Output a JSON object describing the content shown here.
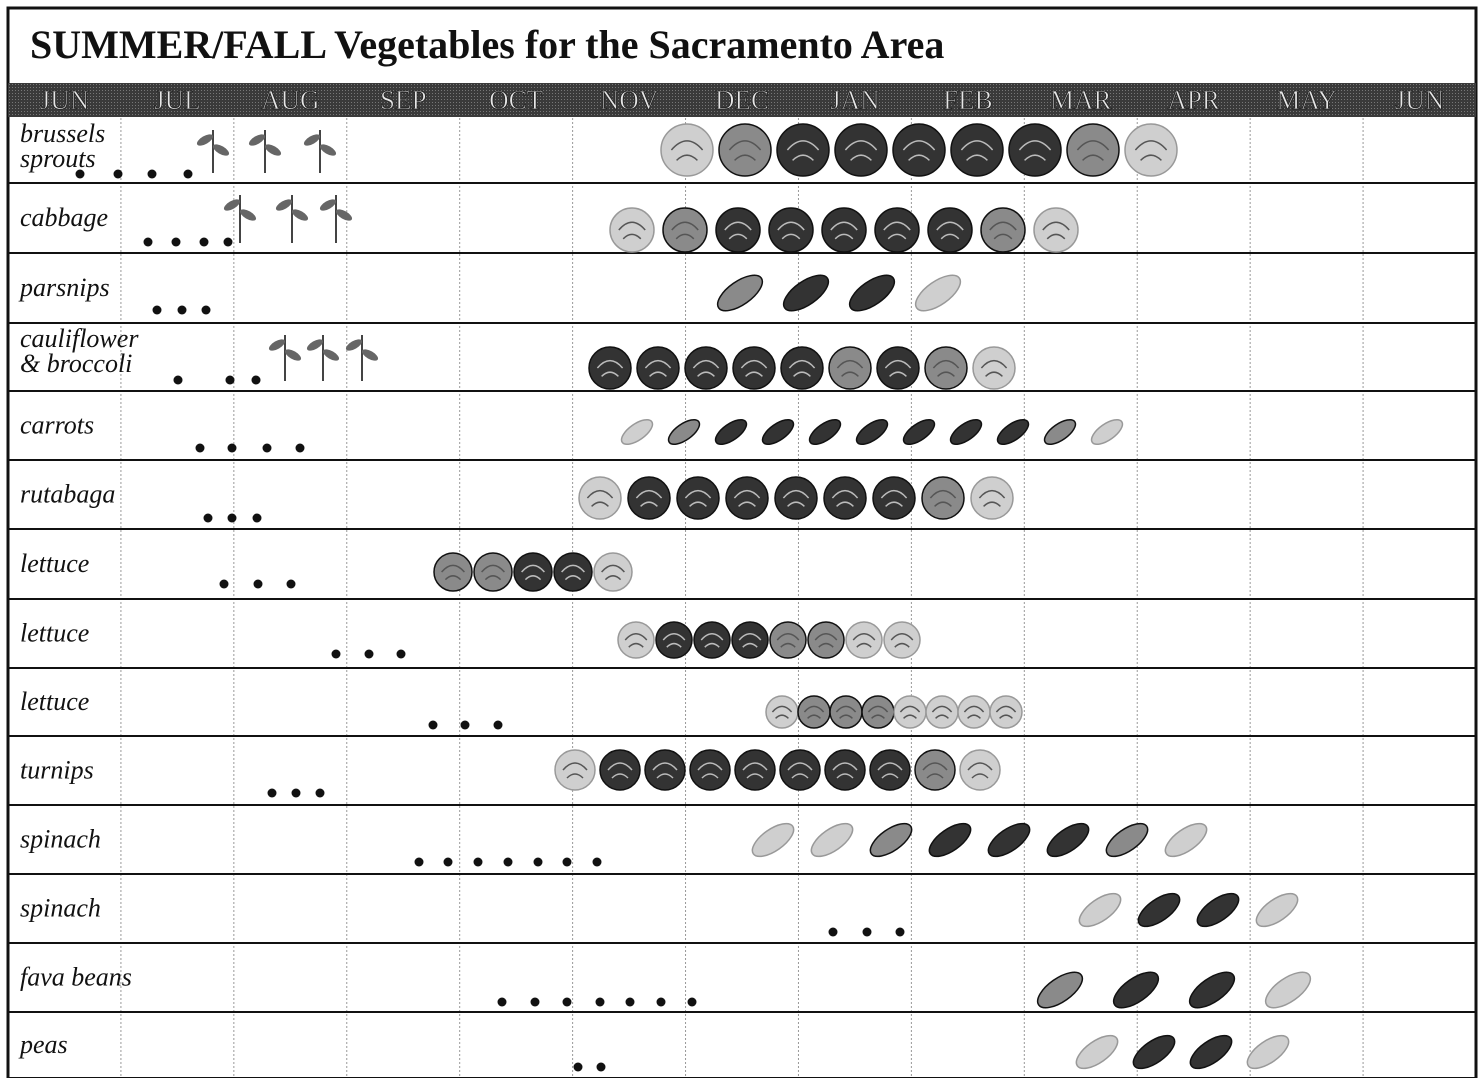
{
  "title": "SUMMER/FALL Vegetables for the Sacramento Area",
  "months": [
    "JUN",
    "JUL",
    "AUG",
    "SEP",
    "OCT",
    "NOV",
    "DEC",
    "JAN",
    "FEB",
    "MAR",
    "APR",
    "MAY",
    "JUN"
  ],
  "rows": [
    {
      "lines": [
        "brussels",
        "sprouts"
      ]
    },
    {
      "lines": [
        "cabbage"
      ]
    },
    {
      "lines": [
        "parsnips"
      ]
    },
    {
      "lines": [
        "cauliflower",
        "& broccoli"
      ]
    },
    {
      "lines": [
        "carrots"
      ]
    },
    {
      "lines": [
        "rutabaga"
      ]
    },
    {
      "lines": [
        "lettuce"
      ]
    },
    {
      "lines": [
        "lettuce"
      ]
    },
    {
      "lines": [
        "lettuce"
      ]
    },
    {
      "lines": [
        "turnips"
      ]
    },
    {
      "lines": [
        "spinach"
      ]
    },
    {
      "lines": [
        "spinach"
      ]
    },
    {
      "lines": [
        "fava beans"
      ]
    },
    {
      "lines": [
        "peas"
      ]
    }
  ]
}
